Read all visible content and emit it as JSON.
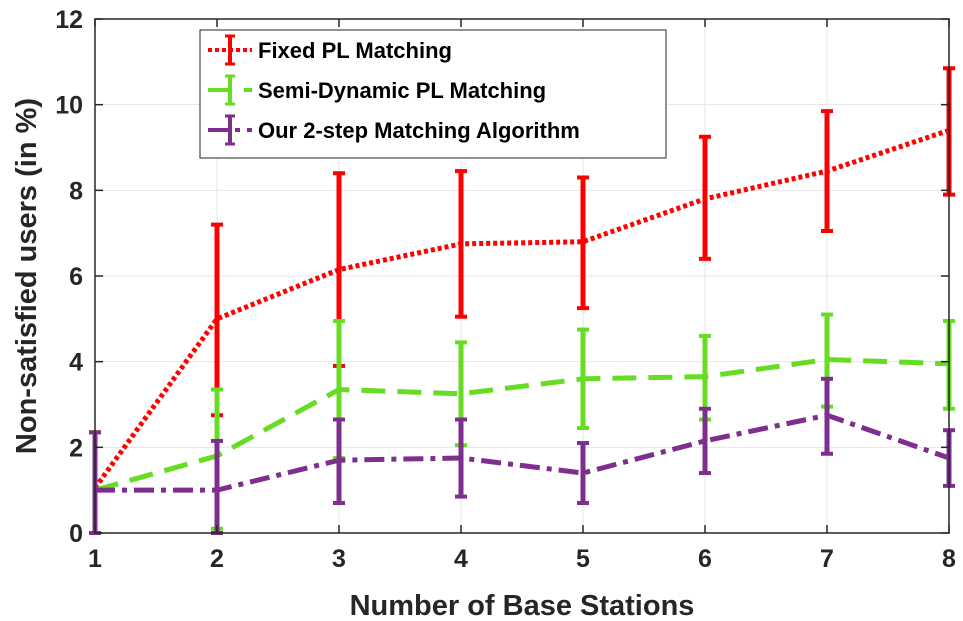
{
  "chart_data": {
    "type": "line",
    "title": "",
    "xlabel": "Number of Base Stations",
    "ylabel": "Non-satisfied users (in %)",
    "xlim": [
      1,
      8
    ],
    "ylim": [
      0,
      12
    ],
    "x": [
      1,
      2,
      3,
      4,
      5,
      6,
      7,
      8
    ],
    "x_ticks": [
      "1",
      "2",
      "3",
      "4",
      "5",
      "6",
      "7",
      "8"
    ],
    "y_ticks": [
      0,
      2,
      4,
      6,
      8,
      10,
      12
    ],
    "y_tick_labels": [
      "0",
      "2",
      "4",
      "6",
      "8",
      "10",
      "12"
    ],
    "grid": true,
    "legend": "top-left",
    "error_bars": true,
    "series": [
      {
        "name": "Fixed PL Matching",
        "color": "#ff0000",
        "line_style": "dotted",
        "values": [
          1.05,
          5.0,
          6.15,
          6.75,
          6.8,
          7.8,
          8.45,
          9.4
        ],
        "lower": [
          0.0,
          2.75,
          3.9,
          5.05,
          5.25,
          6.4,
          7.05,
          7.9
        ],
        "upper": [
          2.35,
          7.2,
          8.4,
          8.45,
          8.3,
          9.25,
          9.85,
          10.85
        ]
      },
      {
        "name": "Semi-Dynamic PL Matching",
        "color": "#66dd22",
        "line_style": "dashed",
        "values": [
          1.0,
          1.8,
          3.35,
          3.25,
          3.6,
          3.65,
          4.05,
          3.95
        ],
        "lower": [
          0.0,
          0.1,
          1.75,
          2.05,
          2.45,
          2.65,
          2.95,
          2.9
        ],
        "upper": [
          2.35,
          3.35,
          4.95,
          4.45,
          4.75,
          4.6,
          5.1,
          4.95
        ]
      },
      {
        "name": "Our 2-step Matching Algorithm",
        "color": "#7e2f8e",
        "line_style": "dash-dot",
        "values": [
          1.0,
          1.0,
          1.7,
          1.75,
          1.4,
          2.15,
          2.75,
          1.75
        ],
        "lower": [
          0.0,
          0.0,
          0.7,
          0.85,
          0.7,
          1.4,
          1.85,
          1.1
        ],
        "upper": [
          2.35,
          2.15,
          2.65,
          2.65,
          2.1,
          2.9,
          3.6,
          2.4
        ]
      }
    ]
  }
}
